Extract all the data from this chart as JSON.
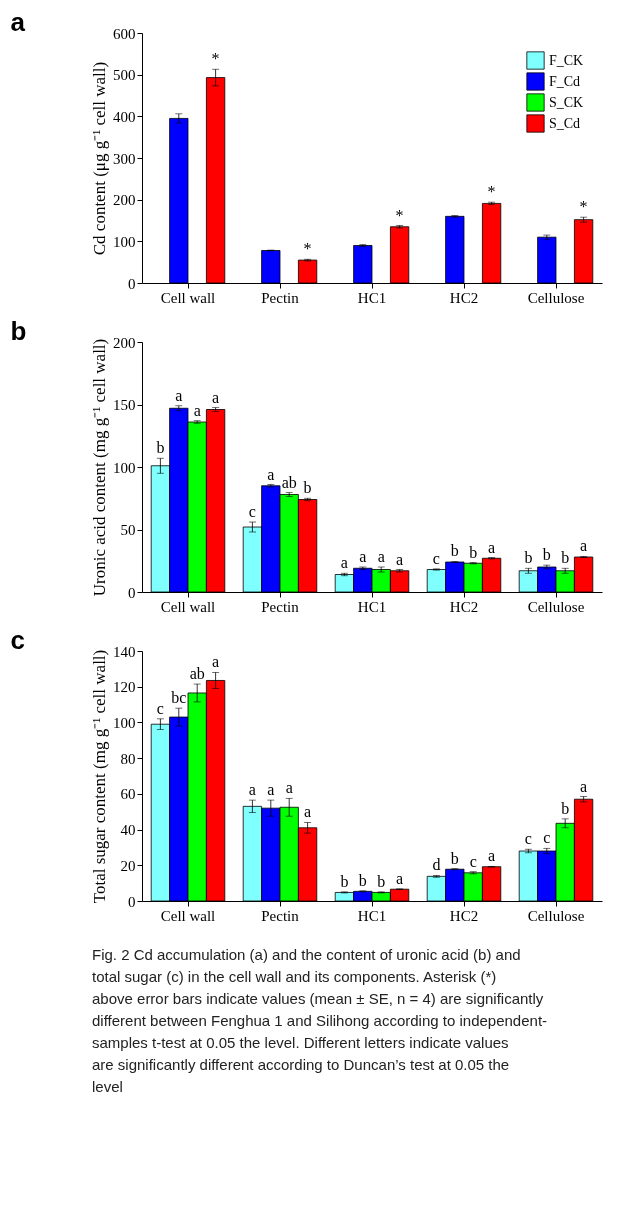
{
  "chart_data": [
    {
      "type": "bar",
      "title": "a",
      "ylabel": "Cd content (μg g⁻¹ cell wall)",
      "categories": [
        "Cell wall",
        "Pectin",
        "HC1",
        "HC2",
        "Cellulose"
      ],
      "ylim": [
        0,
        600
      ],
      "yticks": [
        0,
        100,
        200,
        300,
        400,
        500,
        600
      ],
      "grid": false,
      "legend": "top right",
      "series": [
        {
          "name": "F_CK",
          "color": "#80ffff",
          "values": [
            null,
            null,
            null,
            null,
            null
          ]
        },
        {
          "name": "F_Cd",
          "color": "#0000ff",
          "values": [
            395,
            78,
            90,
            160,
            110
          ],
          "errors": [
            11,
            1,
            2,
            2,
            5
          ]
        },
        {
          "name": "S_CK",
          "color": "#00ff00",
          "values": [
            null,
            null,
            null,
            null,
            null
          ]
        },
        {
          "name": "S_Cd",
          "color": "#ff0000",
          "values": [
            493,
            55,
            135,
            191,
            152
          ],
          "errors": [
            20,
            2,
            3,
            3,
            6
          ],
          "value_labels": [
            "*",
            "*",
            "*",
            "*",
            "*"
          ]
        }
      ]
    },
    {
      "type": "bar",
      "title": "b",
      "ylabel": "Uronic acid content (mg g⁻¹ cell wall)",
      "categories": [
        "Cell wall",
        "Pectin",
        "HC1",
        "HC2",
        "Cellulose"
      ],
      "ylim": [
        0,
        200
      ],
      "yticks": [
        0,
        50,
        100,
        150,
        200
      ],
      "grid": false,
      "legend": false,
      "series": [
        {
          "color": "#80ffff",
          "values": [
            101,
            52,
            14,
            18,
            17
          ],
          "errors": [
            6,
            4,
            1,
            0.5,
            2
          ],
          "value_labels": [
            "b",
            "c",
            "a",
            "c",
            "b"
          ]
        },
        {
          "color": "#0000ff",
          "values": [
            147,
            85,
            19,
            24,
            20
          ],
          "errors": [
            2,
            1,
            1,
            0.5,
            1.5
          ],
          "value_labels": [
            "a",
            "a",
            "a",
            "b",
            "b"
          ]
        },
        {
          "color": "#00ff00",
          "values": [
            136,
            78,
            18,
            23,
            17
          ],
          "errors": [
            1,
            1.5,
            2,
            0.5,
            2
          ],
          "value_labels": [
            "a",
            "ab",
            "a",
            "b",
            "b"
          ]
        },
        {
          "color": "#ff0000",
          "values": [
            146,
            74,
            17,
            27,
            28
          ],
          "errors": [
            1.5,
            1,
            1,
            0.5,
            0.5
          ],
          "value_labels": [
            "a",
            "b",
            "a",
            "a",
            "a"
          ]
        }
      ]
    },
    {
      "type": "bar",
      "title": "c",
      "ylabel": "Total sugar content (mg g⁻¹ cell wall)",
      "categories": [
        "Cell wall",
        "Pectin",
        "HC1",
        "HC2",
        "Cellulose"
      ],
      "ylim": [
        0,
        140
      ],
      "yticks": [
        0,
        20,
        40,
        60,
        80,
        100,
        120,
        140
      ],
      "grid": false,
      "legend": false,
      "series": [
        {
          "color": "#80ffff",
          "values": [
            99,
            53,
            4.8,
            13.8,
            28
          ],
          "errors": [
            3,
            3.5,
            0.3,
            0.5,
            1
          ],
          "value_labels": [
            "c",
            "a",
            "b",
            "d",
            "c"
          ]
        },
        {
          "color": "#0000ff",
          "values": [
            103,
            52,
            5.4,
            17.8,
            28
          ],
          "errors": [
            5,
            4.5,
            0.3,
            0.3,
            1.5
          ],
          "value_labels": [
            "bc",
            "a",
            "b",
            "b",
            "c"
          ]
        },
        {
          "color": "#00ff00",
          "values": [
            116.5,
            52.5,
            4.8,
            15.8,
            43.5
          ],
          "errors": [
            5,
            5,
            0.3,
            0.6,
            2.5
          ],
          "value_labels": [
            "ab",
            "a",
            "b",
            "c",
            "b"
          ]
        },
        {
          "color": "#ff0000",
          "values": [
            123.5,
            41,
            6.6,
            19.2,
            57
          ],
          "errors": [
            4.5,
            3,
            0.2,
            0.2,
            1.5
          ],
          "value_labels": [
            "a",
            "a",
            "a",
            "a",
            "a"
          ]
        }
      ],
      "annotations": [
        "Fig. 2 Cd accumulation (a) and the content of uronic acid (b) and total sugar (c) in the cell wall and its components. Asterisk (*) above error bars indicate values (mean ± SE, n = 4) are significantly different between Fenghua 1 and Silihong according to independent-samples t-test at 0.05 the level. Different letters indicate values are significantly different according to Duncan’s test at 0.05 the level"
      ]
    }
  ]
}
